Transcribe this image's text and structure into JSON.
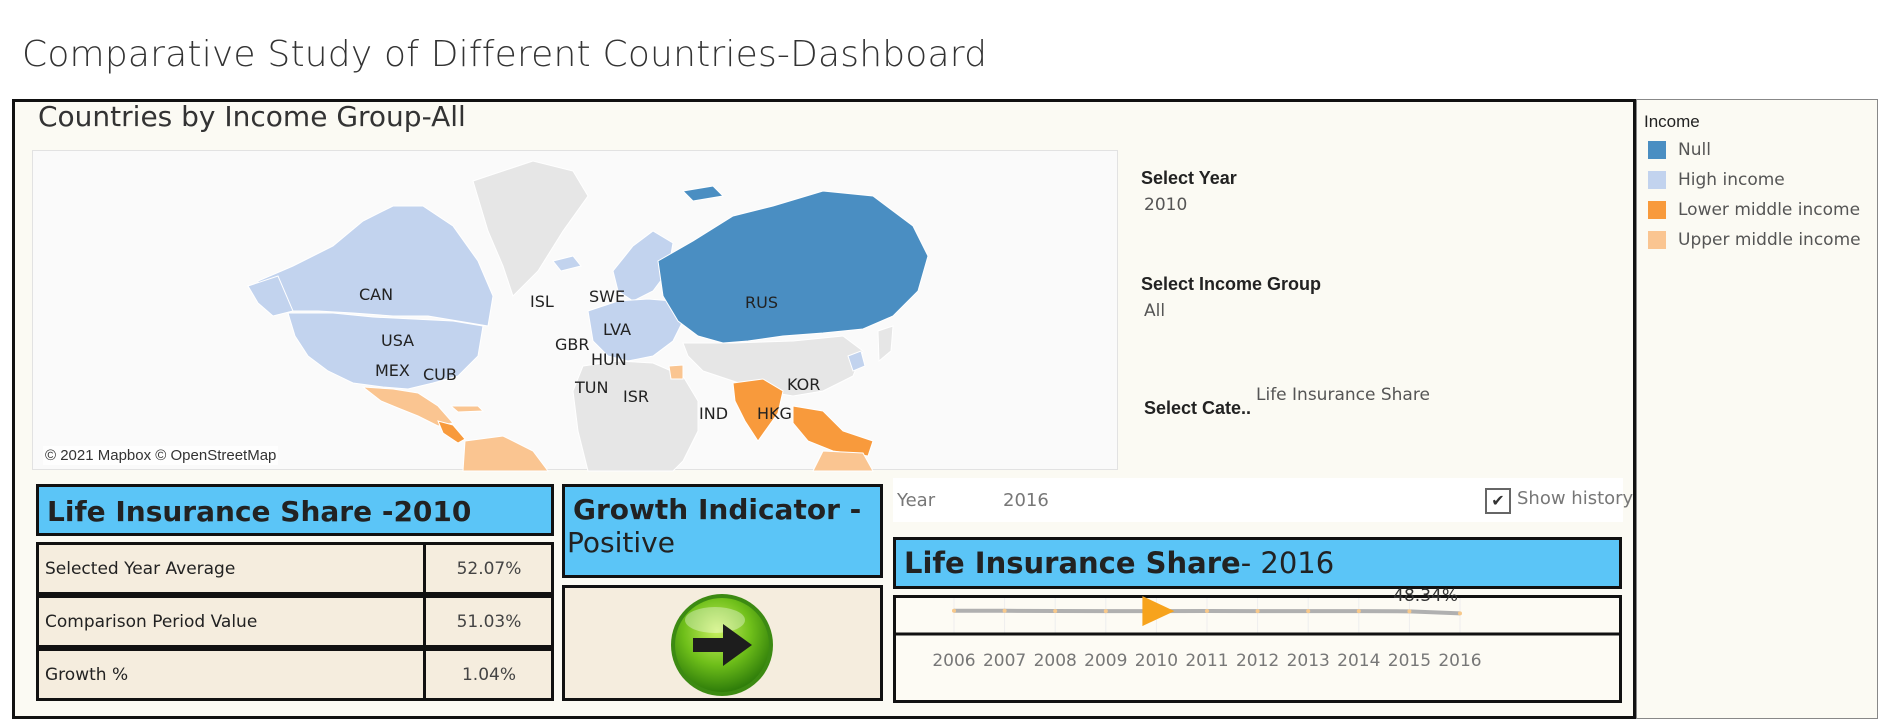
{
  "dashboard": {
    "title": "Comparative Study of Different Countries-Dashboard"
  },
  "map": {
    "title": "Countries by Income Group-All",
    "credit": "© 2021 Mapbox © OpenStreetMap",
    "labels": [
      "CAN",
      "USA",
      "MEX",
      "CUB",
      "ISL",
      "SWE",
      "LVA",
      "GBR",
      "HUN",
      "TUN",
      "ISR",
      "RUS",
      "IND",
      "HKG",
      "KOR"
    ],
    "colors": {
      "null": "#4a8ec2",
      "high_income": "#c2d3ee",
      "lower_middle_income": "#f89a3c",
      "upper_middle_income": "#fac591",
      "no_data": "#e6e6e6"
    }
  },
  "filters": {
    "year_label": "Select Year",
    "year_value": "2010",
    "income_label": "Select Income Group",
    "income_value": "All",
    "category_label": "Select Cate..",
    "category_value": "Life Insurance Share"
  },
  "legend": {
    "title": "Income",
    "items": [
      {
        "label": "Null",
        "color": "#4a8ec2"
      },
      {
        "label": "High income",
        "color": "#c2d3ee"
      },
      {
        "label": "Lower middle income",
        "color": "#f89a3c"
      },
      {
        "label": "Upper middle income",
        "color": "#fac591"
      }
    ]
  },
  "kpi": {
    "header": "Life Insurance Share -2010",
    "rows": [
      {
        "label": "Selected Year Average",
        "value": "52.07%"
      },
      {
        "label": "Comparison Period Value",
        "value": "51.03%"
      },
      {
        "label": "Growth %",
        "value": "1.04%"
      }
    ]
  },
  "growth": {
    "line1": "Growth Indicator -",
    "line2": "Positive",
    "icon": "green-right-arrow-icon"
  },
  "slider": {
    "label": "Year",
    "value": "2016",
    "checkbox_label": "Show history",
    "checked": true
  },
  "trend": {
    "header_bold": "Life Insurance Share",
    "header_normal": "- 2016",
    "top_label": "48.34%"
  },
  "chart_data": {
    "type": "line",
    "x": [
      "2006",
      "2007",
      "2008",
      "2009",
      "2010",
      "2011",
      "2012",
      "2013",
      "2014",
      "2015",
      "2016"
    ],
    "series": [
      {
        "values": [
          52.6,
          52.6,
          52.2,
          52.0,
          52.07,
          52.3,
          52.0,
          51.9,
          52.0,
          51.6,
          48.34
        ]
      }
    ],
    "highlight_x": "2010",
    "line_color": "#b0b0b0",
    "marker_color": "#f7a31c"
  }
}
